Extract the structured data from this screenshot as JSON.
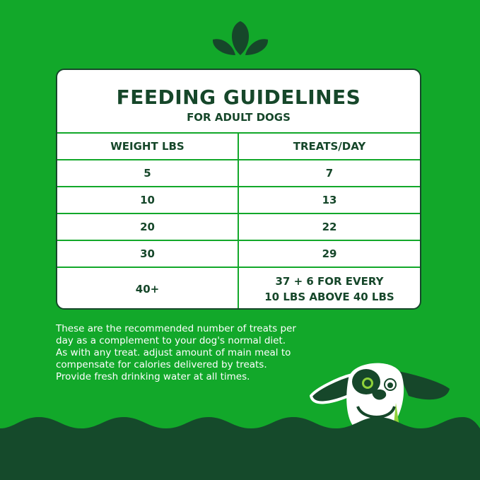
{
  "colors": {
    "background": "#12a82a",
    "dark_green": "#16472a",
    "card": "#ffffff",
    "accent_lime": "#8fd13a"
  },
  "icons": {
    "top": "leaf-sprout-icon",
    "mascot": "dog-mascot"
  },
  "card": {
    "title": "FEEDING GUIDELINES",
    "subtitle": "FOR ADULT DOGS",
    "columns": [
      "WEIGHT LBS",
      "TREATS/DAY"
    ],
    "rows": [
      {
        "weight": "5",
        "treats": "7"
      },
      {
        "weight": "10",
        "treats": "13"
      },
      {
        "weight": "20",
        "treats": "22"
      },
      {
        "weight": "30",
        "treats": "29"
      },
      {
        "weight": "40+",
        "treats": "37 + 6 FOR EVERY",
        "treats_line2": "10 LBS ABOVE 40 LBS"
      }
    ]
  },
  "note": "These are the recommended number of treats per day as a complement to your dog's normal diet. As with any treat. adjust amount of main meal to compensate for calories delivered by treats. Provide fresh drinking water at all times."
}
